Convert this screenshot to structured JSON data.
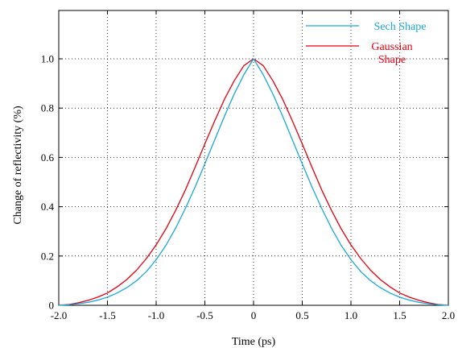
{
  "chart_data": {
    "type": "line",
    "xlabel": "Time (ps)",
    "ylabel": "Change of reflectivity (%)",
    "xlim": [
      -2.0,
      2.0
    ],
    "ylim": [
      0,
      1.2
    ],
    "x_ticks": [
      -2.0,
      -1.5,
      -1.0,
      -0.5,
      0,
      0.5,
      1.0,
      1.5,
      2.0
    ],
    "x_tick_labels": [
      "-2.0",
      "-1.5",
      "-1.0",
      "-0.5",
      "0",
      "0.5",
      "1.0",
      "1.5",
      "2.0"
    ],
    "y_ticks": [
      0,
      0.2,
      0.4,
      0.6,
      0.8,
      1.0
    ],
    "y_tick_labels": [
      "0",
      "0.2",
      "0.4",
      "0.6",
      "0.8",
      "1.0"
    ],
    "grid": true,
    "legend_position": "top-right",
    "series": [
      {
        "name": "Sech Shape",
        "color": "#1aa7d8",
        "x": [
          -2.0,
          -1.9,
          -1.8,
          -1.7,
          -1.6,
          -1.5,
          -1.4,
          -1.3,
          -1.2,
          -1.1,
          -1.0,
          -0.9,
          -0.8,
          -0.7,
          -0.6,
          -0.5,
          -0.4,
          -0.3,
          -0.2,
          -0.1,
          0,
          0.1,
          0.2,
          0.3,
          0.4,
          0.5,
          0.6,
          0.7,
          0.8,
          0.9,
          1.0,
          1.1,
          1.2,
          1.3,
          1.4,
          1.5,
          1.6,
          1.7,
          1.8,
          1.9,
          2.0
        ],
        "y": [
          0,
          0.002,
          0.006,
          0.012,
          0.021,
          0.033,
          0.05,
          0.072,
          0.1,
          0.137,
          0.185,
          0.243,
          0.313,
          0.393,
          0.48,
          0.574,
          0.67,
          0.766,
          0.856,
          0.935,
          1.0,
          0.935,
          0.856,
          0.766,
          0.67,
          0.574,
          0.48,
          0.393,
          0.313,
          0.243,
          0.185,
          0.137,
          0.1,
          0.072,
          0.05,
          0.033,
          0.021,
          0.012,
          0.006,
          0.002,
          0
        ]
      },
      {
        "name": "Gaussian Shape",
        "color": "#e3000f",
        "x": [
          -2.0,
          -1.9,
          -1.8,
          -1.7,
          -1.6,
          -1.5,
          -1.4,
          -1.3,
          -1.2,
          -1.1,
          -1.0,
          -0.9,
          -0.8,
          -0.7,
          -0.6,
          -0.5,
          -0.4,
          -0.3,
          -0.2,
          -0.1,
          0,
          0.1,
          0.2,
          0.3,
          0.4,
          0.5,
          0.6,
          0.7,
          0.8,
          0.9,
          1.0,
          1.1,
          1.2,
          1.3,
          1.4,
          1.5,
          1.6,
          1.7,
          1.8,
          1.9,
          2.0
        ],
        "y": [
          0,
          0.003,
          0.01,
          0.02,
          0.033,
          0.05,
          0.075,
          0.105,
          0.143,
          0.19,
          0.245,
          0.31,
          0.385,
          0.468,
          0.56,
          0.655,
          0.747,
          0.835,
          0.91,
          0.972,
          1.0,
          0.972,
          0.91,
          0.835,
          0.747,
          0.655,
          0.56,
          0.468,
          0.385,
          0.31,
          0.245,
          0.19,
          0.143,
          0.105,
          0.075,
          0.05,
          0.033,
          0.02,
          0.01,
          0.003,
          0
        ]
      }
    ],
    "legend": [
      {
        "lines": [
          "Sech Shape"
        ],
        "color": "#1aa7d8"
      },
      {
        "lines": [
          "Gaussian",
          "Shape"
        ],
        "color": "#e3000f"
      }
    ]
  }
}
